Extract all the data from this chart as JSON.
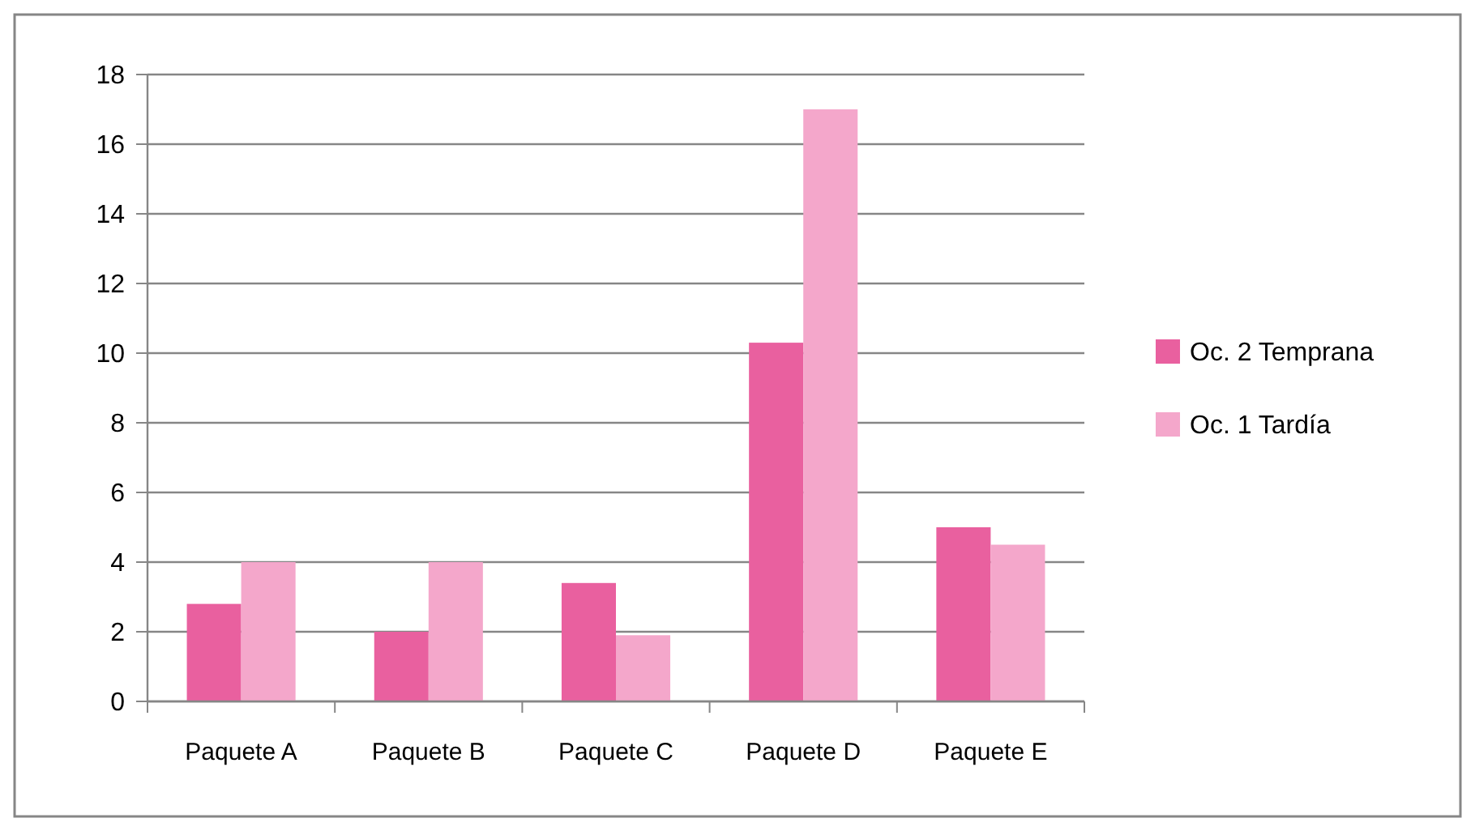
{
  "chart_data": {
    "type": "bar",
    "categories": [
      "Paquete A",
      "Paquete B",
      "Paquete C",
      "Paquete D",
      "Paquete E"
    ],
    "series": [
      {
        "name": "Oc. 2 Temprana",
        "color": "#e9609f",
        "values": [
          2.8,
          2.0,
          3.4,
          10.3,
          5.0
        ]
      },
      {
        "name": "Oc. 1 Tardía",
        "color": "#f4a7cb",
        "values": [
          4.0,
          4.0,
          1.9,
          17.0,
          4.5
        ]
      }
    ],
    "ylim": [
      0,
      18
    ],
    "yticks": [
      0,
      2,
      4,
      6,
      8,
      10,
      12,
      14,
      16,
      18
    ],
    "grid": "y",
    "legend": "right"
  }
}
